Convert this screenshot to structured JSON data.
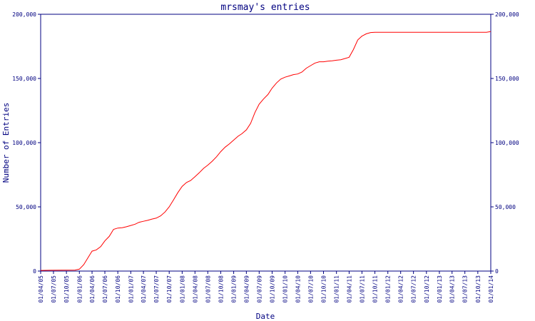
{
  "chart_data": {
    "type": "line",
    "title": "mrsmay's entries",
    "xlabel": "Date",
    "ylabel": "Number of Entries",
    "ylim": [
      0,
      200000
    ],
    "yticks": [
      0,
      50000,
      100000,
      150000,
      200000
    ],
    "ytick_labels": [
      "0",
      "50,000",
      "100,000",
      "150,000",
      "200,000"
    ],
    "xticks": [
      "01/04/05",
      "01/07/05",
      "01/10/05",
      "01/01/06",
      "01/04/06",
      "01/07/06",
      "01/10/06",
      "01/01/07",
      "01/04/07",
      "01/07/07",
      "01/10/07",
      "01/01/08",
      "01/04/08",
      "01/07/08",
      "01/10/08",
      "01/01/09",
      "01/04/09",
      "01/07/09",
      "01/10/09",
      "01/01/10",
      "01/04/10",
      "01/07/10",
      "01/10/10",
      "01/01/11",
      "01/04/11",
      "01/07/11",
      "01/10/11",
      "01/01/12",
      "01/04/12",
      "01/07/12",
      "01/10/12",
      "01/01/13",
      "01/04/13",
      "01/07/13",
      "01/10/13",
      "01/01/14"
    ],
    "series": [
      {
        "color": "#ff0000",
        "x": [
          "2005-04-01",
          "2005-06-01",
          "2005-09-01",
          "2005-12-01",
          "2006-01-01",
          "2006-02-01",
          "2006-03-01",
          "2006-04-01",
          "2006-05-01",
          "2006-06-01",
          "2006-07-01",
          "2006-08-01",
          "2006-09-01",
          "2006-10-01",
          "2006-11-01",
          "2006-12-01",
          "2007-01-01",
          "2007-02-01",
          "2007-03-01",
          "2007-04-01",
          "2007-05-01",
          "2007-06-01",
          "2007-07-01",
          "2007-08-01",
          "2007-09-01",
          "2007-10-01",
          "2007-11-01",
          "2007-12-01",
          "2008-01-01",
          "2008-02-01",
          "2008-03-01",
          "2008-04-01",
          "2008-05-01",
          "2008-06-01",
          "2008-07-01",
          "2008-08-01",
          "2008-09-01",
          "2008-10-01",
          "2008-11-01",
          "2008-12-01",
          "2009-01-01",
          "2009-02-01",
          "2009-03-01",
          "2009-04-01",
          "2009-05-01",
          "2009-06-01",
          "2009-07-01",
          "2009-08-01",
          "2009-09-01",
          "2009-10-01",
          "2009-11-01",
          "2009-12-01",
          "2010-01-01",
          "2010-02-01",
          "2010-03-01",
          "2010-04-01",
          "2010-05-01",
          "2010-06-01",
          "2010-07-01",
          "2010-08-01",
          "2010-09-01",
          "2010-10-01",
          "2010-11-01",
          "2010-12-01",
          "2011-01-01",
          "2011-02-01",
          "2011-03-01",
          "2011-04-01",
          "2011-05-01",
          "2011-06-01",
          "2011-07-01",
          "2011-08-01",
          "2011-09-01",
          "2011-10-01",
          "2011-11-01",
          "2011-12-01",
          "2012-01-01",
          "2012-02-01",
          "2012-03-01",
          "2012-04-01",
          "2012-05-01",
          "2012-06-01",
          "2012-07-01",
          "2012-08-01",
          "2012-09-01",
          "2012-10-01",
          "2012-11-01",
          "2012-12-01",
          "2013-03-01",
          "2013-06-01",
          "2013-09-01",
          "2013-12-01",
          "2014-01-01"
        ],
        "y": [
          500,
          600,
          700,
          800,
          1500,
          5000,
          10000,
          15500,
          16500,
          19000,
          23500,
          27000,
          32500,
          33500,
          33800,
          34500,
          35500,
          36500,
          38000,
          38800,
          39500,
          40500,
          41200,
          43000,
          46000,
          50000,
          55500,
          61000,
          66000,
          69000,
          70500,
          73500,
          76500,
          80000,
          82500,
          85500,
          89000,
          93000,
          96500,
          99000,
          102000,
          105000,
          107000,
          110000,
          115000,
          123500,
          130000,
          134000,
          137500,
          142500,
          146500,
          149500,
          151000,
          152000,
          153000,
          153500,
          155000,
          158000,
          160000,
          162000,
          163000,
          163000,
          163500,
          163800,
          164200,
          164600,
          165500,
          166500,
          172500,
          180000,
          183000,
          184800,
          185800,
          186000,
          186000,
          186000,
          186000,
          186000,
          186000,
          186000,
          186000,
          186000,
          186000,
          186000,
          186000,
          186000,
          186000,
          186000,
          186000,
          186000,
          186000,
          186000,
          186500
        ]
      }
    ],
    "grid": false,
    "legend": "none",
    "axes_color": "#000080"
  }
}
